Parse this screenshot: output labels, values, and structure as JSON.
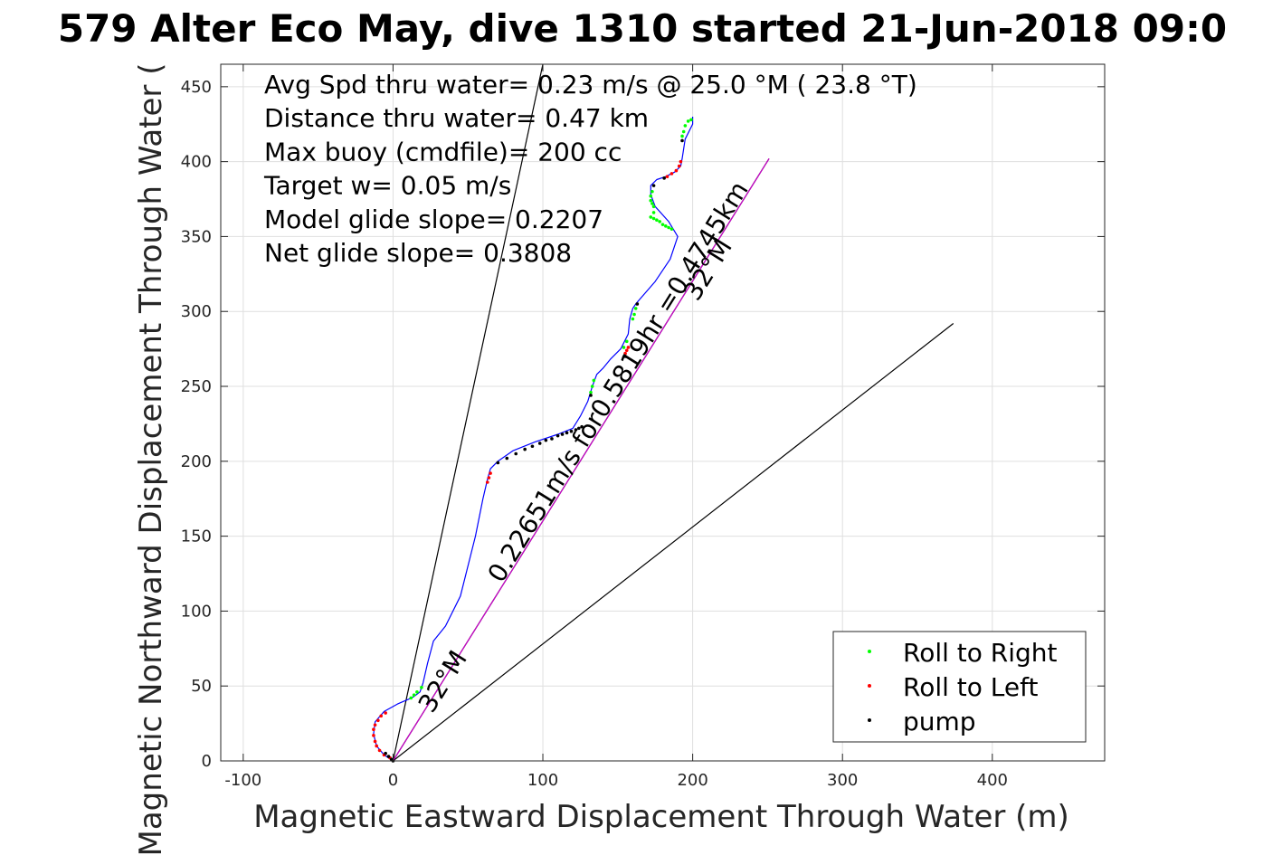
{
  "chart_data": {
    "type": "line",
    "title": "579 Alter Eco May, dive 1310 started 21-Jun-2018 09:0",
    "xlabel": "Magnetic Eastward Displacement Through Water (m)",
    "ylabel": "Magnetic Northward Displacement Through Water (",
    "xlim": [
      -115,
      475
    ],
    "ylim": [
      0,
      465
    ],
    "xticks": [
      -100,
      0,
      100,
      200,
      300,
      400
    ],
    "yticks": [
      0,
      50,
      100,
      150,
      200,
      250,
      300,
      350,
      400,
      450
    ],
    "grid": true,
    "legend_position": "bottom-right",
    "annotations": [
      "Avg Spd thru water=  0.23 m/s @  25.0 °M ( 23.8 °T)",
      "Distance thru water=  0.47 km",
      "Max buoy (cmdfile)= 200 cc",
      "Target w= 0.05 m/s",
      "Model glide slope= 0.2207",
      "Net glide slope= 0.3808"
    ],
    "line_labels": [
      {
        "text": "0.22651m/s for0.5819hr =0.4745km",
        "x": 155,
        "y": 250,
        "angle_deg": -58
      },
      {
        "text": "32°M",
        "x": 215,
        "y": 325,
        "angle_deg": -58
      },
      {
        "text": "32°M",
        "x": 38,
        "y": 50,
        "angle_deg": -58
      }
    ],
    "reference_lines": [
      {
        "name": "heading-line-left",
        "x": [
          0,
          100
        ],
        "y": [
          0,
          465
        ],
        "color": "#000000"
      },
      {
        "name": "heading-line-right",
        "x": [
          0,
          374
        ],
        "y": [
          0,
          292
        ],
        "color": "#000000"
      },
      {
        "name": "net-track-line",
        "x": [
          0,
          251
        ],
        "y": [
          0,
          402
        ],
        "color": "#000000"
      },
      {
        "name": "net-track-line-overlay",
        "x": [
          0,
          251
        ],
        "y": [
          0,
          402
        ],
        "color": "#cc00cc"
      }
    ],
    "track": {
      "color": "#0000ff",
      "x": [
        0,
        -6,
        -11,
        -13,
        -12,
        -6,
        3,
        10,
        14,
        18,
        20,
        23,
        27,
        35,
        45,
        55,
        60,
        63,
        65,
        70,
        80,
        95,
        110,
        120,
        125,
        130,
        133,
        136,
        140,
        145,
        152,
        157,
        158,
        160,
        162,
        175,
        185,
        190,
        184,
        175,
        172,
        172,
        176,
        182,
        188,
        192,
        193,
        195,
        200,
        200
      ],
      "y": [
        0,
        4,
        10,
        18,
        26,
        33,
        38,
        41,
        43,
        46,
        52,
        65,
        80,
        90,
        110,
        150,
        175,
        188,
        195,
        200,
        207,
        213,
        218,
        222,
        230,
        240,
        250,
        258,
        262,
        268,
        275,
        285,
        295,
        302,
        305,
        320,
        335,
        350,
        360,
        370,
        378,
        384,
        388,
        390,
        393,
        397,
        402,
        415,
        425,
        430
      ]
    },
    "series": [
      {
        "name": "Roll to Right",
        "color": "#00ff00",
        "points": [
          [
            12,
            42
          ],
          [
            14,
            44
          ],
          [
            16,
            46
          ],
          [
            19,
            49
          ],
          [
            132,
            246
          ],
          [
            133,
            250
          ],
          [
            134,
            254
          ],
          [
            154,
            276
          ],
          [
            156,
            280
          ],
          [
            160,
            295
          ],
          [
            161,
            298
          ],
          [
            162,
            302
          ],
          [
            172,
            363
          ],
          [
            174,
            362
          ],
          [
            176,
            361
          ],
          [
            178,
            360
          ],
          [
            180,
            358
          ],
          [
            182,
            357
          ],
          [
            184,
            356
          ],
          [
            186,
            355
          ],
          [
            173,
            380
          ],
          [
            172,
            377
          ],
          [
            172,
            374
          ],
          [
            173,
            372
          ],
          [
            174,
            370
          ],
          [
            174,
            366
          ],
          [
            193,
            417
          ],
          [
            194,
            420
          ],
          [
            195,
            424
          ],
          [
            197,
            427
          ],
          [
            199,
            428
          ]
        ]
      },
      {
        "name": "Roll to Left",
        "color": "#ff0000",
        "points": [
          [
            -2,
            2
          ],
          [
            -6,
            4
          ],
          [
            -9,
            7
          ],
          [
            -11,
            10
          ],
          [
            -12,
            13
          ],
          [
            -13,
            17
          ],
          [
            -13,
            21
          ],
          [
            -12,
            24
          ],
          [
            -10,
            27
          ],
          [
            -8,
            30
          ],
          [
            -5,
            32
          ],
          [
            63,
            186
          ],
          [
            64,
            189
          ],
          [
            65,
            192
          ],
          [
            155,
            272
          ],
          [
            156,
            274
          ],
          [
            157,
            276
          ],
          [
            183,
            390
          ],
          [
            186,
            392
          ],
          [
            189,
            394
          ],
          [
            191,
            397
          ],
          [
            192,
            400
          ]
        ]
      },
      {
        "name": "pump",
        "color": "#000000",
        "points": [
          [
            0,
            0
          ],
          [
            -1,
            1
          ],
          [
            -3,
            3
          ],
          [
            -5,
            5
          ],
          [
            70,
            199
          ],
          [
            76,
            202
          ],
          [
            82,
            205
          ],
          [
            88,
            208
          ],
          [
            93,
            210
          ],
          [
            98,
            212
          ],
          [
            102,
            214
          ],
          [
            106,
            215
          ],
          [
            110,
            217
          ],
          [
            113,
            218
          ],
          [
            116,
            219
          ],
          [
            119,
            220
          ],
          [
            122,
            221
          ],
          [
            124,
            222
          ],
          [
            126,
            223
          ],
          [
            132,
            244
          ],
          [
            155,
            270
          ],
          [
            163,
            305
          ],
          [
            174,
            384
          ],
          [
            181,
            389
          ],
          [
            193,
            414
          ]
        ]
      }
    ]
  }
}
